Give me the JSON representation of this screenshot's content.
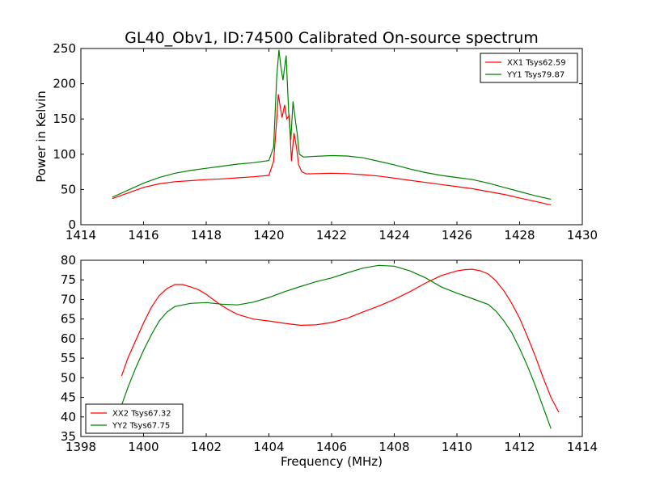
{
  "figure": {
    "title": "GL40_Obv1, ID:74500 Calibrated On-source spectrum",
    "xlabel": "Frequency (MHz)"
  },
  "colors": {
    "red": "#ff0000",
    "green": "#008000",
    "axes": "#000000",
    "background": "#ffffff"
  },
  "chart_data": [
    {
      "type": "line",
      "ylabel": "Power in Kelvin",
      "xlim": [
        1414,
        1430
      ],
      "ylim": [
        0,
        250
      ],
      "xticks": [
        "1414",
        "1416",
        "1418",
        "1420",
        "1422",
        "1424",
        "1426",
        "1428",
        "1430"
      ],
      "yticks": [
        "0",
        "50",
        "100",
        "150",
        "200",
        "250"
      ],
      "legend_position": "top-right",
      "series": [
        {
          "name": "XX1 Tsys62.59",
          "color": "#ff0000",
          "x": [
            1415.0,
            1415.5,
            1416.0,
            1416.5,
            1417.0,
            1417.5,
            1418.0,
            1418.5,
            1419.0,
            1419.5,
            1420.0,
            1420.15,
            1420.25,
            1420.3,
            1420.35,
            1420.42,
            1420.5,
            1420.57,
            1420.65,
            1420.72,
            1420.8,
            1420.88,
            1420.95,
            1421.05,
            1421.2,
            1421.5,
            1422.0,
            1422.5,
            1423.0,
            1423.5,
            1424.0,
            1424.5,
            1425.0,
            1425.5,
            1426.0,
            1426.5,
            1427.0,
            1427.5,
            1428.0,
            1428.5,
            1429.0
          ],
          "y": [
            37,
            45,
            53,
            58,
            61,
            62.5,
            64,
            65,
            66.5,
            68,
            70,
            90,
            150,
            185,
            170,
            152,
            170,
            150,
            155,
            90,
            130,
            110,
            85,
            75,
            72,
            72.5,
            73,
            72.5,
            71,
            69,
            66,
            63,
            60,
            57,
            54,
            51,
            47,
            43,
            38,
            33,
            28
          ]
        },
        {
          "name": "YY1 Tsys79.87",
          "color": "#008000",
          "x": [
            1415.0,
            1415.5,
            1416.0,
            1416.5,
            1417.0,
            1417.5,
            1418.0,
            1418.5,
            1419.0,
            1419.5,
            1420.0,
            1420.15,
            1420.25,
            1420.32,
            1420.38,
            1420.45,
            1420.55,
            1420.63,
            1420.7,
            1420.77,
            1420.84,
            1420.9,
            1420.97,
            1421.1,
            1421.5,
            1422.0,
            1422.5,
            1423.0,
            1423.5,
            1424.0,
            1424.5,
            1425.0,
            1425.5,
            1426.0,
            1426.5,
            1427.0,
            1427.5,
            1428.0,
            1428.5,
            1429.0
          ],
          "y": [
            39,
            49,
            59,
            67,
            73,
            77,
            80,
            83,
            86,
            88,
            91,
            110,
            210,
            248,
            225,
            205,
            240,
            160,
            120,
            175,
            150,
            130,
            100,
            96,
            97,
            98,
            97.5,
            95,
            90,
            85,
            79,
            74,
            70,
            67,
            64,
            59,
            53,
            47,
            41,
            36
          ]
        }
      ]
    },
    {
      "type": "line",
      "ylabel": "",
      "xlim": [
        1398,
        1414
      ],
      "ylim": [
        35,
        80
      ],
      "xticks": [
        "1398",
        "1400",
        "1402",
        "1404",
        "1406",
        "1408",
        "1410",
        "1412",
        "1414"
      ],
      "yticks": [
        "35",
        "40",
        "45",
        "50",
        "55",
        "60",
        "65",
        "70",
        "75",
        "80"
      ],
      "legend_position": "bottom-left",
      "series": [
        {
          "name": "XX2 Tsys67.32",
          "color": "#ff0000",
          "x": [
            1399.3,
            1399.5,
            1399.75,
            1400.0,
            1400.25,
            1400.5,
            1400.75,
            1401.0,
            1401.25,
            1401.5,
            1401.75,
            1402.0,
            1402.25,
            1402.5,
            1402.75,
            1403.0,
            1403.5,
            1404.0,
            1404.5,
            1405.0,
            1405.5,
            1406.0,
            1406.5,
            1407.0,
            1407.5,
            1408.0,
            1408.5,
            1409.0,
            1409.5,
            1410.0,
            1410.25,
            1410.5,
            1410.75,
            1411.0,
            1411.25,
            1411.5,
            1411.75,
            1412.0,
            1412.25,
            1412.5,
            1412.75,
            1413.0,
            1413.25
          ],
          "y": [
            50.5,
            55,
            59.5,
            64,
            68,
            71,
            72.8,
            73.8,
            73.8,
            73.2,
            72.5,
            71.3,
            69.8,
            68.4,
            67.2,
            66.2,
            65,
            64.5,
            63.9,
            63.4,
            63.5,
            64.1,
            65.2,
            66.8,
            68.3,
            70,
            72,
            74.2,
            76.1,
            77.3,
            77.6,
            77.7,
            77.3,
            76.5,
            74.7,
            72.2,
            69,
            65.2,
            60.5,
            55.5,
            50,
            45,
            41.2
          ]
        },
        {
          "name": "YY2 Tsys67.75",
          "color": "#008000",
          "x": [
            1399.3,
            1399.5,
            1399.75,
            1400.0,
            1400.25,
            1400.5,
            1400.75,
            1401.0,
            1401.5,
            1402.0,
            1402.5,
            1403.0,
            1403.5,
            1404.0,
            1404.5,
            1405.0,
            1405.5,
            1406.0,
            1406.5,
            1407.0,
            1407.5,
            1408.0,
            1408.5,
            1409.0,
            1409.5,
            1410.0,
            1410.5,
            1411.0,
            1411.25,
            1411.5,
            1411.75,
            1412.0,
            1412.25,
            1412.5,
            1412.75,
            1413.0
          ],
          "y": [
            43,
            47.5,
            52.5,
            57,
            61,
            64.5,
            66.8,
            68.2,
            69,
            69.2,
            68.8,
            68.6,
            69.3,
            70.5,
            72,
            73.3,
            74.5,
            75.5,
            76.8,
            78,
            78.7,
            78.5,
            77.3,
            75.5,
            73.2,
            71.6,
            70.2,
            68.7,
            67,
            64.5,
            61.5,
            57.5,
            53,
            48,
            42.5,
            37
          ]
        }
      ]
    }
  ]
}
